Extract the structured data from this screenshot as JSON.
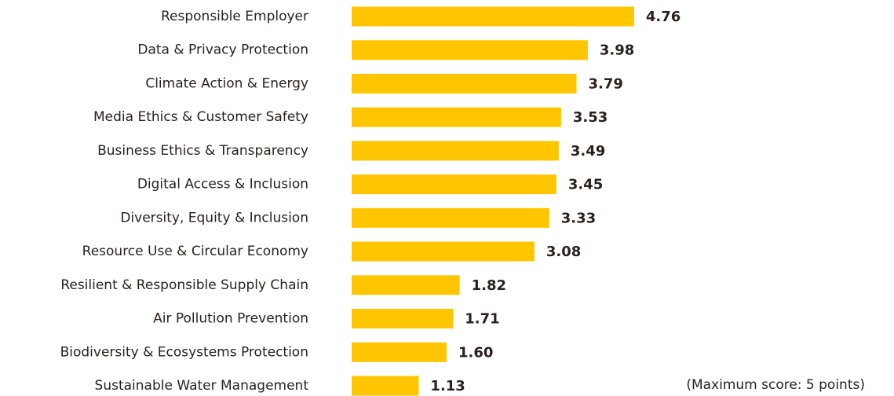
{
  "chart_data": {
    "type": "bar",
    "orientation": "horizontal",
    "categories": [
      "Responsible Employer",
      "Data & Privacy Protection",
      "Climate Action & Energy",
      "Media Ethics & Customer Safety",
      "Business Ethics & Transparency",
      "Digital Access & Inclusion",
      "Diversity, Equity & Inclusion",
      "Resource Use & Circular Economy",
      "Resilient & Responsible Supply Chain",
      "Air Pollution Prevention",
      "Biodiversity & Ecosystems Protection",
      "Sustainable Water Management"
    ],
    "values": [
      4.76,
      3.98,
      3.79,
      3.53,
      3.49,
      3.45,
      3.33,
      3.08,
      1.82,
      1.71,
      1.6,
      1.13
    ],
    "value_labels": [
      "4.76",
      "3.98",
      "3.79",
      "3.53",
      "3.49",
      "3.45",
      "3.33",
      "3.08",
      "1.82",
      "1.71",
      "1.60",
      "1.13"
    ],
    "color": "#ffc600",
    "xlim": [
      0,
      5
    ],
    "annotation": "(Maximum score: 5 points)"
  }
}
